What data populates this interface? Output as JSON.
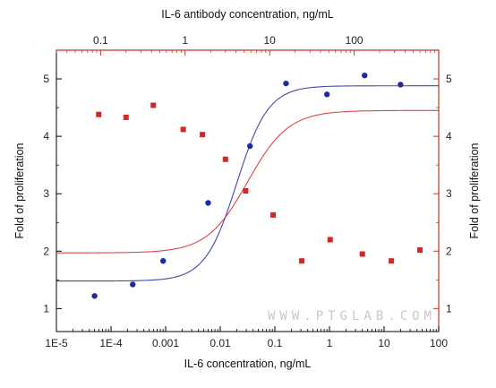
{
  "chart_data": {
    "type": "scatter",
    "top_axis": {
      "label": "IL-6 antibody concentration, ng/mL",
      "scale": "log",
      "range": [
        0.03,
        1000
      ],
      "ticks": [
        0.1,
        1,
        10,
        100
      ],
      "tick_labels": [
        "0.1",
        "1",
        "10",
        "100"
      ],
      "color": "#c0392b"
    },
    "bottom_axis": {
      "label": "IL-6 concentration, ng/mL",
      "scale": "log",
      "range": [
        1e-05,
        100
      ],
      "ticks": [
        1e-05,
        0.0001,
        0.001,
        0.01,
        0.1,
        1,
        10,
        100
      ],
      "tick_labels": [
        "1E-5",
        "1E-4",
        "0.001",
        "0.01",
        "0.1",
        "1",
        "10",
        "100"
      ],
      "color": "#000000"
    },
    "left_axis": {
      "label": "Fold of proliferation",
      "range": [
        0.6,
        5.5
      ],
      "ticks": [
        1,
        2,
        3,
        4,
        5
      ],
      "tick_labels": [
        "1",
        "2",
        "3",
        "4",
        "5"
      ],
      "color": "#000000"
    },
    "right_axis": {
      "label": "Fold of proliferation",
      "range": [
        0.6,
        5.5
      ],
      "ticks": [
        1,
        2,
        3,
        4,
        5
      ],
      "tick_labels": [
        "1",
        "2",
        "3",
        "4",
        "5"
      ],
      "color": "#c0392b"
    },
    "series": [
      {
        "axis": "bottom",
        "color": "#1f2a9e",
        "marker": "circle",
        "points": [
          {
            "x": 5e-05,
            "y": 1.22
          },
          {
            "x": 0.00025,
            "y": 1.42
          },
          {
            "x": 0.0009,
            "y": 1.83
          },
          {
            "x": 0.006,
            "y": 2.84
          },
          {
            "x": 0.035,
            "y": 3.83
          },
          {
            "x": 0.16,
            "y": 4.92
          },
          {
            "x": 0.9,
            "y": 4.73
          },
          {
            "x": 4.4,
            "y": 5.06
          },
          {
            "x": 20,
            "y": 4.9
          }
        ],
        "fit": {
          "model": "4PL",
          "bottom": 1.48,
          "top": 4.88,
          "ec50": 0.02,
          "hill": 1.5,
          "x_range": [
            1e-05,
            100
          ]
        }
      },
      {
        "axis": "top",
        "color": "#d62728",
        "marker": "square",
        "points": [
          {
            "x": 0.095,
            "y": 4.38
          },
          {
            "x": 0.2,
            "y": 4.33
          },
          {
            "x": 0.42,
            "y": 4.54
          },
          {
            "x": 0.95,
            "y": 4.12
          },
          {
            "x": 1.6,
            "y": 4.03
          },
          {
            "x": 3.0,
            "y": 3.6
          },
          {
            "x": 5.2,
            "y": 3.05
          },
          {
            "x": 11,
            "y": 2.63
          },
          {
            "x": 24,
            "y": 1.83
          },
          {
            "x": 52,
            "y": 2.2
          },
          {
            "x": 125,
            "y": 1.95
          },
          {
            "x": 275,
            "y": 1.83
          },
          {
            "x": 600,
            "y": 2.02
          }
        ],
        "fit": {
          "model": "4PL",
          "bottom": 1.97,
          "top": 4.45,
          "ec50": 5.5,
          "hill": 1.8,
          "x_range": [
            0.03,
            1000
          ]
        }
      }
    ],
    "watermark": "WWW.PTGLAB.COM",
    "grid": false
  }
}
